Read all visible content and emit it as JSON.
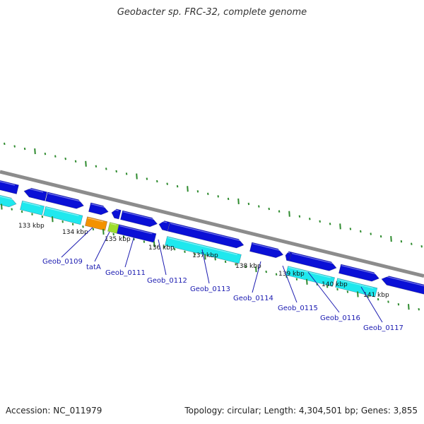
{
  "title": "Geobacter sp. FRC-32, complete genome",
  "footer": {
    "accession": "Accession: NC_011979",
    "summary": "Topology: circular; Length: 4,304,501 bp; Genes: 3,855"
  },
  "colors": {
    "backbone": "#8c8c8c",
    "cds": "#0a10d6",
    "rna_cyan": "#1fe8ee",
    "tatA_orange": "#f39200",
    "small_green": "#9dde2c",
    "ticks": "#2e8b2e",
    "label": "#1a1ab0"
  },
  "ruler": {
    "unit": "kbp",
    "labels": [
      "133 kbp",
      "134 kbp",
      "135 kbp",
      "136 kbp",
      "137 kbp",
      "138 kbp",
      "139 kbp",
      "140 kbp",
      "141 kbp"
    ]
  },
  "genes": [
    {
      "name": "Geob_0109"
    },
    {
      "name": "tatA"
    },
    {
      "name": "Geob_0111"
    },
    {
      "name": "Geob_0112"
    },
    {
      "name": "Geob_0113"
    },
    {
      "name": "Geob_0114"
    },
    {
      "name": "Geob_0115"
    },
    {
      "name": "Geob_0116"
    },
    {
      "name": "Geob_0117"
    }
  ]
}
